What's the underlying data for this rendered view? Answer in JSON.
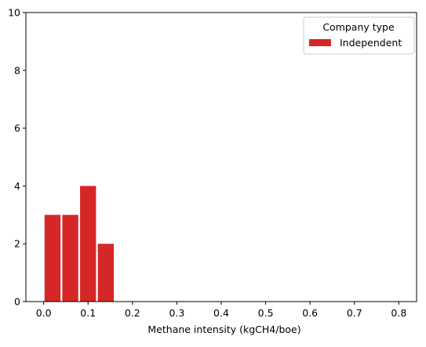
{
  "chart_data": {
    "type": "bar",
    "title": "",
    "xlabel": "Methane intensity (kgCH4/boe)",
    "ylabel": "",
    "xlim": [
      -0.04,
      0.84
    ],
    "ylim": [
      0,
      10
    ],
    "xticks": [
      "0.0",
      "0.1",
      "0.2",
      "0.3",
      "0.4",
      "0.5",
      "0.6",
      "0.7",
      "0.8"
    ],
    "yticks": [
      "0",
      "2",
      "4",
      "6",
      "8",
      "10"
    ],
    "bins": [
      {
        "start": 0.0,
        "end": 0.04,
        "value": 3
      },
      {
        "start": 0.04,
        "end": 0.08,
        "value": 3
      },
      {
        "start": 0.08,
        "end": 0.12,
        "value": 4
      },
      {
        "start": 0.12,
        "end": 0.16,
        "value": 2
      }
    ],
    "series": [
      {
        "name": "Independent",
        "color": "#d62728"
      }
    ],
    "legend": {
      "title": "Company type",
      "placement": "top-right"
    },
    "grid": false
  }
}
